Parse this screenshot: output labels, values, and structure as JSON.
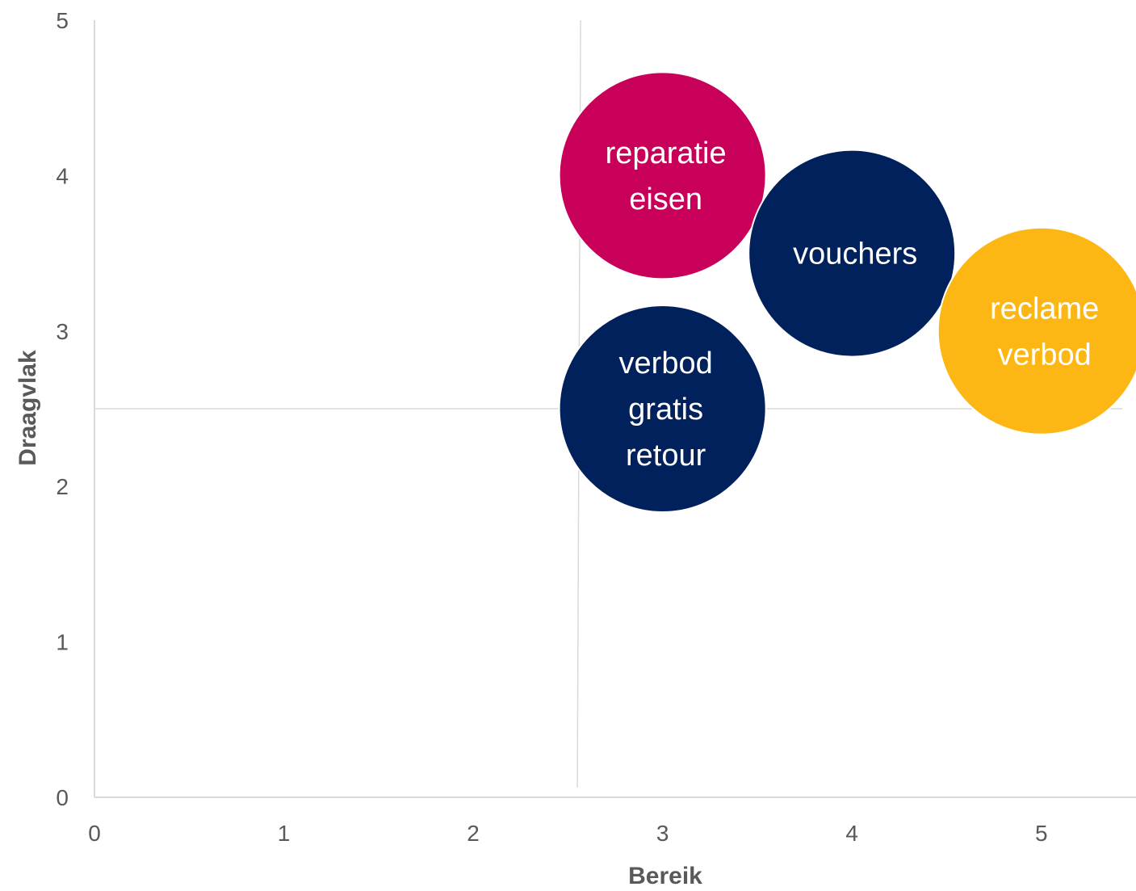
{
  "chart_data": {
    "type": "bubble",
    "xlabel": "Bereik",
    "ylabel": "Draagvlak",
    "xlim": [
      0,
      5.5
    ],
    "ylim": [
      0,
      5
    ],
    "x_ticks": [
      "0",
      "1",
      "2",
      "3",
      "4",
      "5"
    ],
    "y_ticks": [
      "0",
      "1",
      "2",
      "3",
      "4",
      "5"
    ],
    "grid": false,
    "legend": "none",
    "quadrant_lines": {
      "x": 2.55,
      "y": 2.5
    },
    "points": [
      {
        "label": [
          "reparatie",
          "eisen"
        ],
        "x": 3,
        "y": 4,
        "size": 1,
        "color": "#C8005A"
      },
      {
        "label": [
          "vouchers"
        ],
        "x": 4,
        "y": 3.5,
        "size": 1,
        "color": "#00215C"
      },
      {
        "label": [
          "reclame",
          "verbod"
        ],
        "x": 5,
        "y": 3,
        "size": 1,
        "color": "#FDB714"
      },
      {
        "label": [
          "verbod",
          "gratis",
          "retour"
        ],
        "x": 3,
        "y": 2.5,
        "size": 1,
        "color": "#00215C"
      }
    ]
  }
}
